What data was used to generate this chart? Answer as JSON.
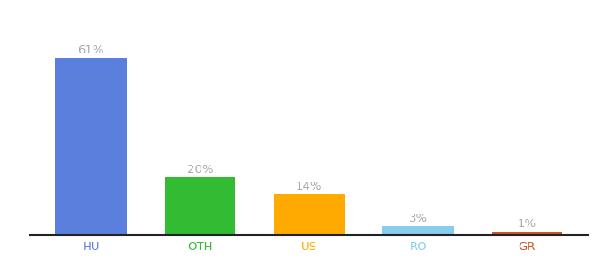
{
  "categories": [
    "HU",
    "OTH",
    "US",
    "RO",
    "GR"
  ],
  "values": [
    61,
    20,
    14,
    3,
    1
  ],
  "labels": [
    "61%",
    "20%",
    "14%",
    "3%",
    "1%"
  ],
  "bar_colors": [
    "#5b7fdd",
    "#33bb33",
    "#ffaa00",
    "#88ccee",
    "#cc5522"
  ],
  "background_color": "#ffffff",
  "ylim": [
    0,
    70
  ],
  "bar_width": 0.65,
  "label_fontsize": 9.5,
  "tick_fontsize": 9.5,
  "label_color": "#aaaaaa",
  "tick_color": "#5b7fdd",
  "bottom_spine_color": "#222222"
}
